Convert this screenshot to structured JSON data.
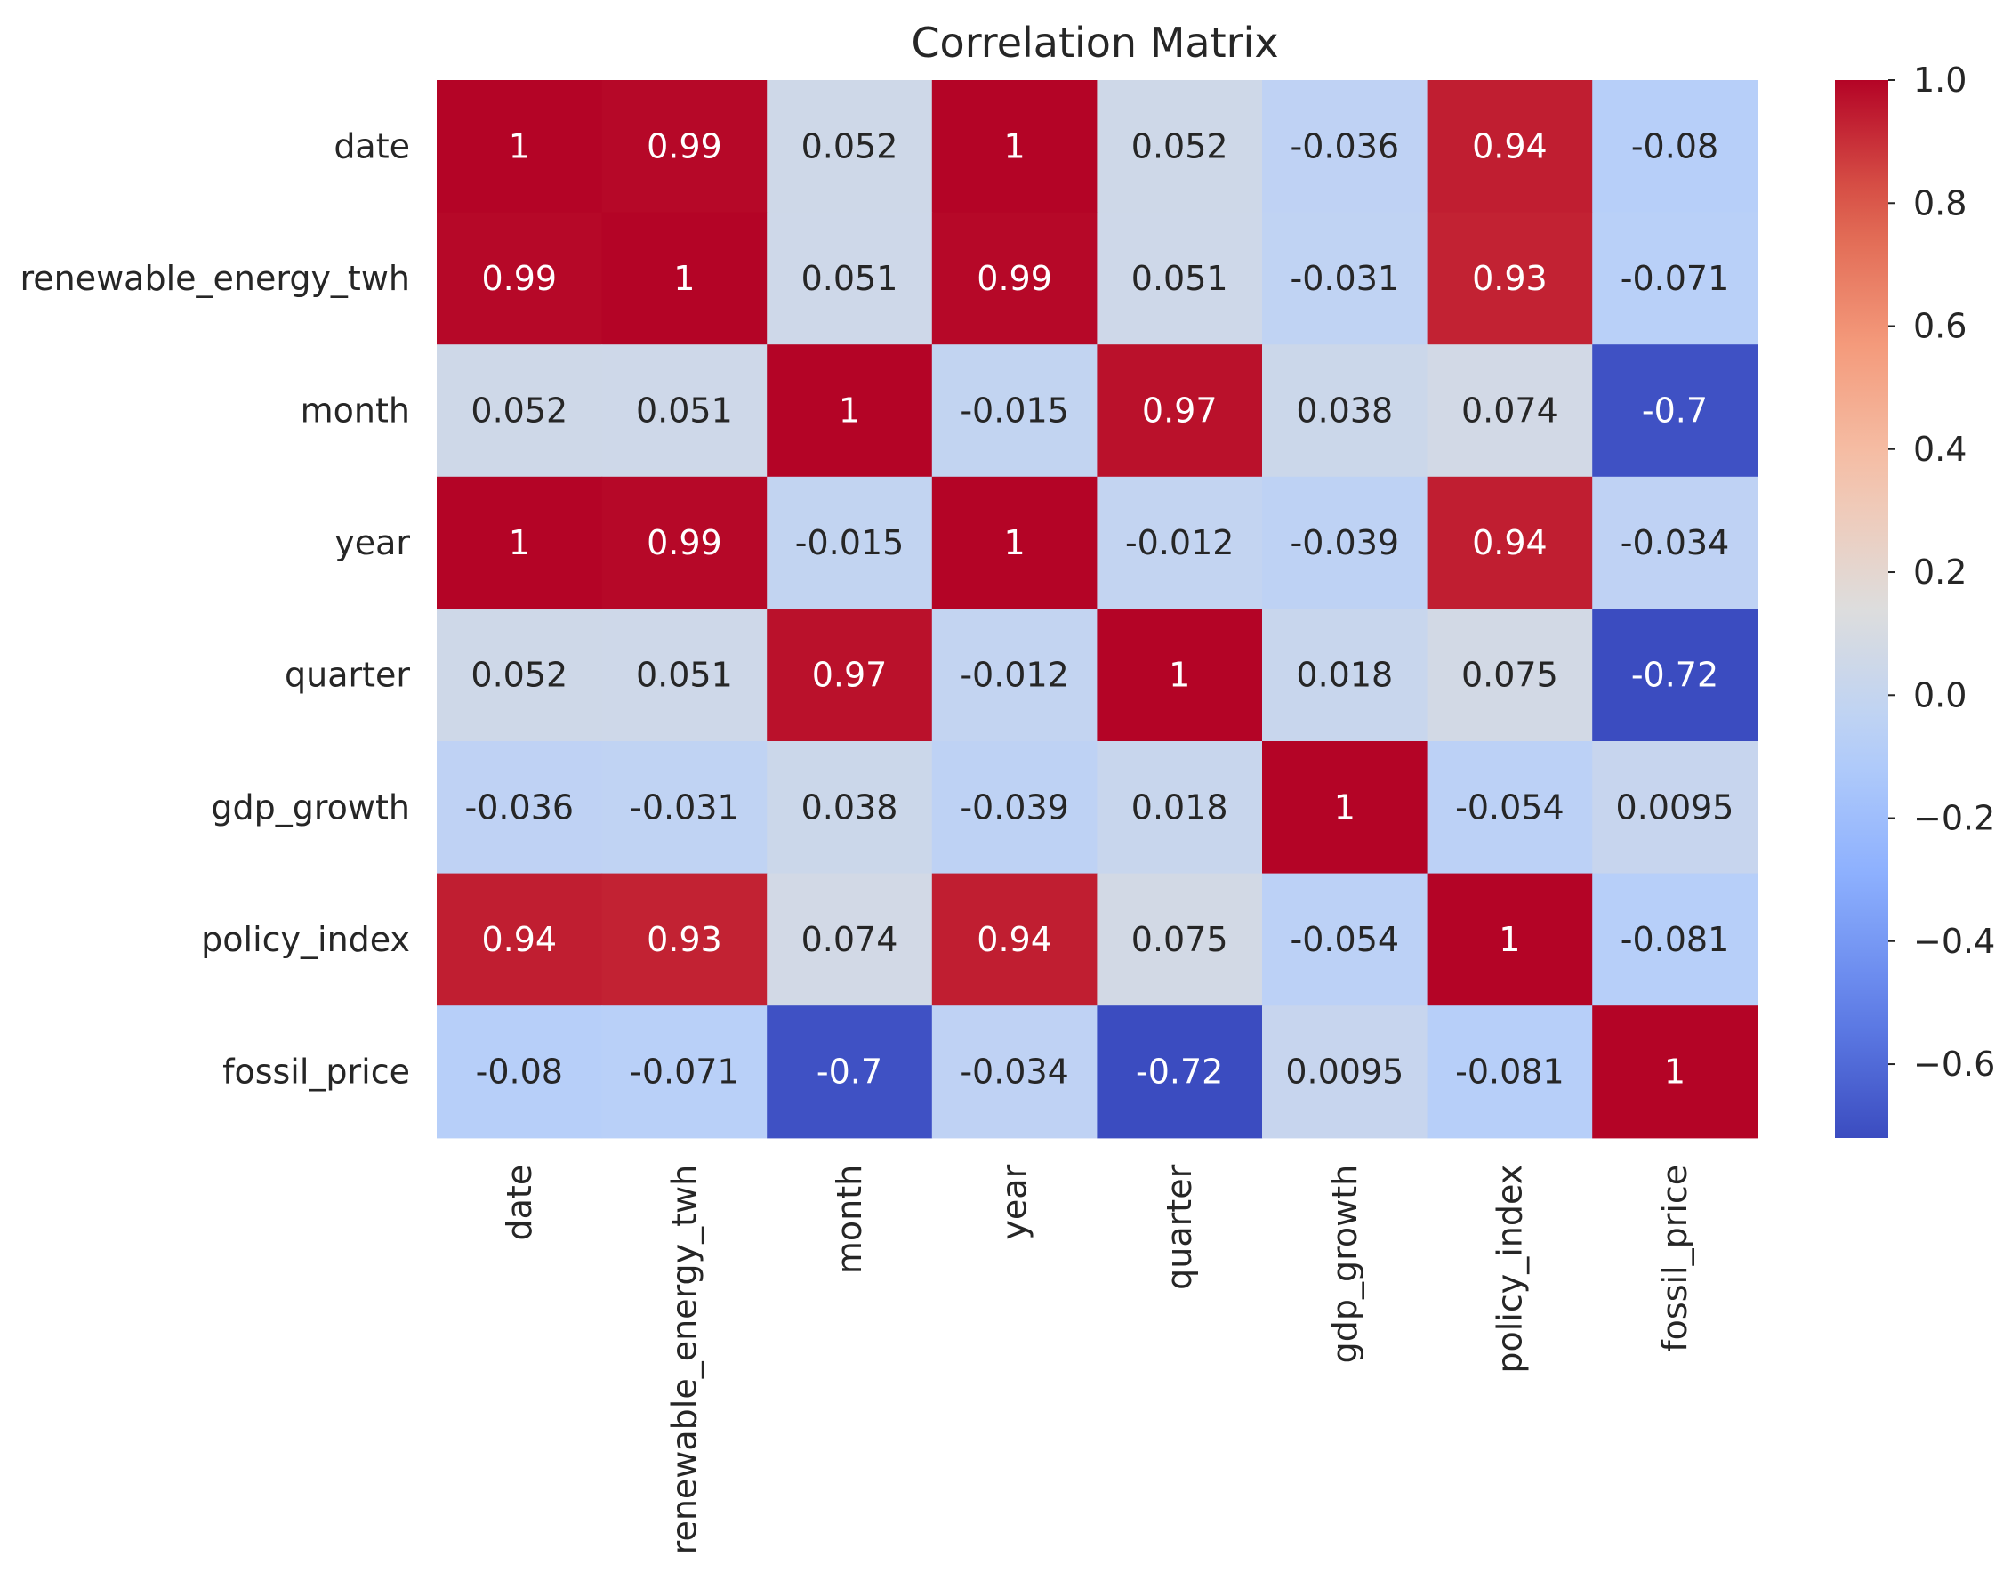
{
  "chart_data": {
    "type": "heatmap",
    "title": "Correlation Matrix",
    "xlabel": "",
    "ylabel": "",
    "variables": [
      "date",
      "renewable_energy_twh",
      "month",
      "year",
      "quarter",
      "gdp_growth",
      "policy_index",
      "fossil_price"
    ],
    "matrix": [
      [
        1,
        0.99,
        0.052,
        1,
        0.052,
        -0.036,
        0.94,
        -0.08
      ],
      [
        0.99,
        1,
        0.051,
        0.99,
        0.051,
        -0.031,
        0.93,
        -0.071
      ],
      [
        0.052,
        0.051,
        1,
        -0.015,
        0.97,
        0.038,
        0.074,
        -0.7
      ],
      [
        1,
        0.99,
        -0.015,
        1,
        -0.012,
        -0.039,
        0.94,
        -0.034
      ],
      [
        0.052,
        0.051,
        0.97,
        -0.012,
        1,
        0.018,
        0.075,
        -0.72
      ],
      [
        -0.036,
        -0.031,
        0.038,
        -0.039,
        0.018,
        1,
        -0.054,
        0.0095
      ],
      [
        0.94,
        0.93,
        0.074,
        0.94,
        0.075,
        -0.054,
        1,
        -0.081
      ],
      [
        -0.08,
        -0.071,
        -0.7,
        -0.034,
        -0.72,
        0.0095,
        -0.081,
        1
      ]
    ],
    "labels": [
      [
        "1",
        "0.99",
        "0.052",
        "1",
        "0.052",
        "-0.036",
        "0.94",
        "-0.08"
      ],
      [
        "0.99",
        "1",
        "0.051",
        "0.99",
        "0.051",
        "-0.031",
        "0.93",
        "-0.071"
      ],
      [
        "0.052",
        "0.051",
        "1",
        "-0.015",
        "0.97",
        "0.038",
        "0.074",
        "-0.7"
      ],
      [
        "1",
        "0.99",
        "-0.015",
        "1",
        "-0.012",
        "-0.039",
        "0.94",
        "-0.034"
      ],
      [
        "0.052",
        "0.051",
        "0.97",
        "-0.012",
        "1",
        "0.018",
        "0.075",
        "-0.72"
      ],
      [
        "-0.036",
        "-0.031",
        "0.038",
        "-0.039",
        "0.018",
        "1",
        "-0.054",
        "0.0095"
      ],
      [
        "0.94",
        "0.93",
        "0.074",
        "0.94",
        "0.075",
        "-0.054",
        "1",
        "-0.081"
      ],
      [
        "-0.08",
        "-0.071",
        "-0.7",
        "-0.034",
        "-0.72",
        "0.0095",
        "-0.081",
        "1"
      ]
    ],
    "colormap": "coolwarm",
    "vmin": -0.72,
    "vmax": 1.0,
    "colorbar": {
      "ticks": [
        1.0,
        0.8,
        0.6,
        0.4,
        0.2,
        0.0,
        -0.2,
        -0.4,
        -0.6
      ],
      "tick_labels": [
        "1.0",
        "0.8",
        "0.6",
        "0.4",
        "0.2",
        "0.0",
        "−0.2",
        "−0.4",
        "−0.6"
      ],
      "placement": "right"
    },
    "grid": false
  }
}
